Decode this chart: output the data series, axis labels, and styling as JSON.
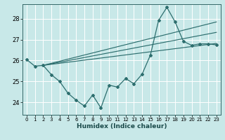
{
  "xlabel": "Humidex (Indice chaleur)",
  "background_color": "#c8e8e8",
  "grid_color": "#ffffff",
  "line_color": "#2d6e6e",
  "xlim": [
    -0.5,
    23.5
  ],
  "ylim": [
    23.4,
    28.7
  ],
  "yticks": [
    24,
    25,
    26,
    27,
    28
  ],
  "xticks": [
    0,
    1,
    2,
    3,
    4,
    5,
    6,
    7,
    8,
    9,
    10,
    11,
    12,
    13,
    14,
    15,
    16,
    17,
    18,
    19,
    20,
    21,
    22,
    23
  ],
  "series1_x": [
    0,
    1,
    2,
    3,
    4,
    5,
    6,
    7,
    8,
    9,
    10,
    11,
    12,
    13,
    14,
    15,
    16,
    17,
    18,
    19,
    20,
    21,
    22,
    23
  ],
  "series1_y": [
    26.05,
    25.73,
    25.77,
    25.32,
    25.0,
    24.44,
    24.1,
    23.82,
    24.35,
    23.73,
    24.82,
    24.73,
    25.14,
    24.89,
    25.35,
    26.26,
    27.93,
    28.55,
    27.85,
    26.92,
    26.73,
    26.8,
    26.8,
    26.75
  ],
  "line2_x": [
    2,
    23
  ],
  "line2_y": [
    25.77,
    26.82
  ],
  "line3_x": [
    2,
    23
  ],
  "line3_y": [
    25.77,
    27.35
  ],
  "line4_x": [
    2,
    23
  ],
  "line4_y": [
    25.77,
    27.85
  ]
}
